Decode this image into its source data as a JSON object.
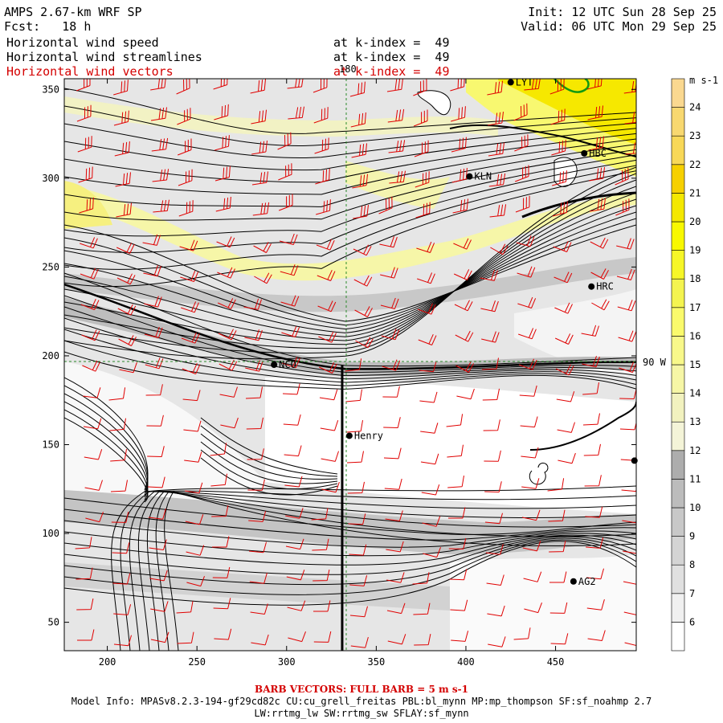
{
  "header": {
    "model": "AMPS 2.67-km WRF SP",
    "fcst": "Fcst:   18 h",
    "init": "Init: 12 UTC Sun 28 Sep 25",
    "valid": "Valid: 06 UTC Mon 29 Sep 25",
    "fields": [
      {
        "name": "Horizontal wind speed",
        "level": "at k-index =  49",
        "color": "#000000"
      },
      {
        "name": "Horizontal wind streamlines",
        "level": "at k-index =  49",
        "color": "#000000"
      },
      {
        "name": "Horizontal wind vectors",
        "level": "at k-index =  49",
        "color": "#d40000"
      }
    ]
  },
  "map": {
    "x_ticks": [
      200,
      250,
      300,
      350,
      400,
      450
    ],
    "y_ticks": [
      50,
      100,
      150,
      200,
      250,
      300,
      350
    ],
    "x_range": [
      176,
      495
    ],
    "y_range": [
      34,
      356
    ],
    "meridian_label": "180",
    "parallel_label": "90 W",
    "stations": [
      {
        "name": "LYT",
        "x": 425,
        "y": 354
      },
      {
        "name": "HBC",
        "x": 466,
        "y": 314
      },
      {
        "name": "KLN",
        "x": 402,
        "y": 301
      },
      {
        "name": "HRC",
        "x": 470,
        "y": 239
      },
      {
        "name": "NCO",
        "x": 293,
        "y": 195
      },
      {
        "name": "Henry",
        "x": 335,
        "y": 155
      },
      {
        "name": "",
        "x": 494,
        "y": 141
      },
      {
        "name": "AG2",
        "x": 460,
        "y": 73
      }
    ],
    "transect": {
      "x": 331,
      "y_from": 34,
      "y_to": 195
    }
  },
  "colorbar": {
    "unit": "m s-1",
    "levels": [
      6,
      7,
      8,
      9,
      10,
      11,
      12,
      13,
      14,
      15,
      16,
      17,
      18,
      19,
      20,
      21,
      22,
      23,
      24
    ],
    "colors": [
      "#ffffff",
      "#f0f0f0",
      "#e0e0e0",
      "#d4d4d4",
      "#c8c8c8",
      "#bcbcbc",
      "#adadad",
      "#f4f4d8",
      "#f2f2bf",
      "#f6f6a6",
      "#f8f88a",
      "#fafa6c",
      "#f4f450",
      "#f6f628",
      "#f8f800",
      "#f4e800",
      "#f6d000",
      "#f8d858",
      "#f8d870",
      "#fad890"
    ]
  },
  "footer": {
    "barb": "BARB VECTORS:  FULL BARB = 5 m s-1",
    "model_info": "Model Info: MPASv8.2.3-194-gf29cd82c CU:cu_grell_freitas PBL:bl_mynn MP:mp_thompson SF:sf_noahmp 2.7",
    "model_info2": "LW:rrtmg_lw SW:rrtmg_sw SFLAY:sf_mynn"
  }
}
